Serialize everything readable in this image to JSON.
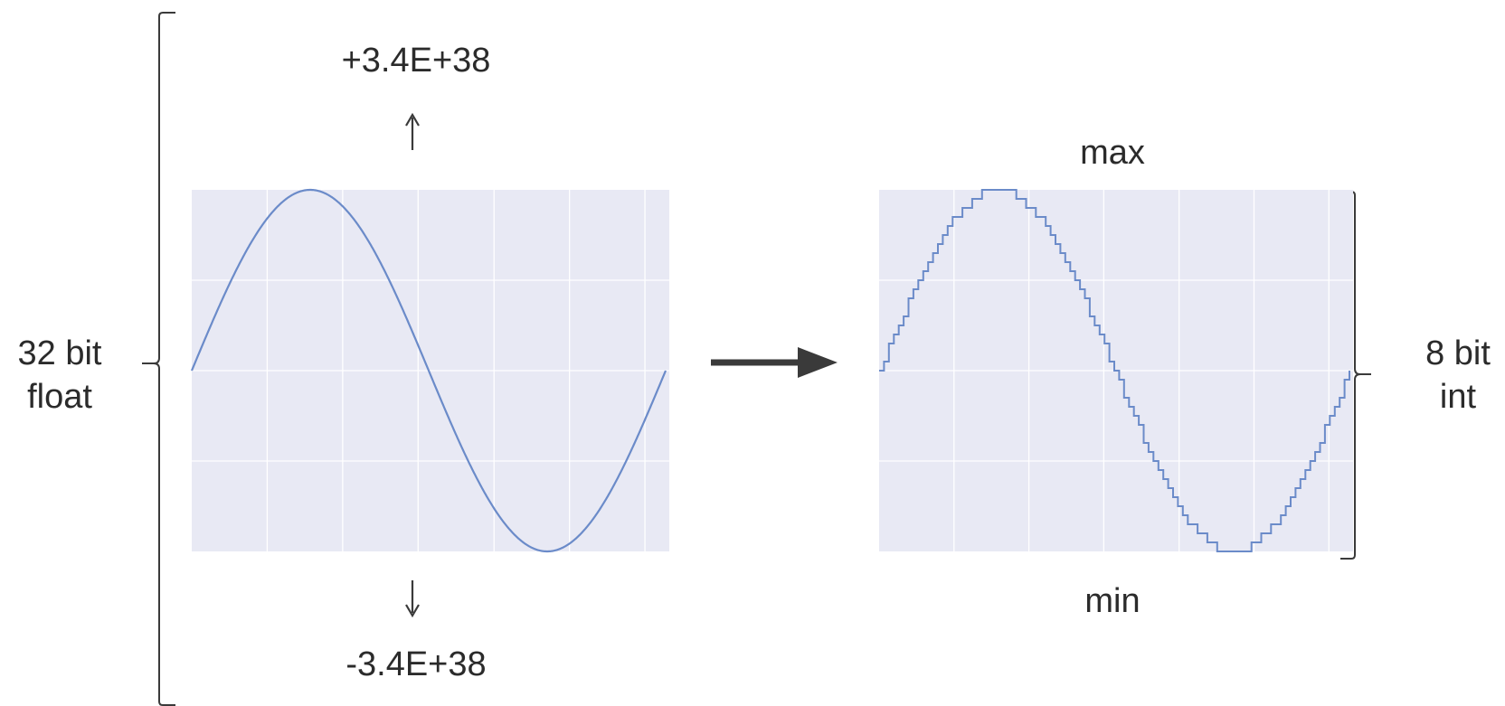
{
  "labels": {
    "source_type": "32 bit\nfloat",
    "target_type": "8 bit\nint",
    "float_max": "+3.4E+38",
    "float_min": "-3.4E+38",
    "int_max": "max",
    "int_min": "min"
  },
  "colors": {
    "plot_background": "#e8e9f4",
    "grid": "#ffffff",
    "signal": "#6b8bc9",
    "arrow": "#3a3a3a",
    "bracket": "#3a3a3a",
    "text": "#2b2b2b"
  },
  "icons": {
    "up": "arrow-up-icon",
    "down": "arrow-down-icon",
    "conversion": "arrow-right-icon"
  },
  "chart_data": [
    {
      "type": "line",
      "series": [
        {
          "function": "sine",
          "cycles": 1,
          "quantized": false
        }
      ],
      "grid": true
    },
    {
      "type": "line",
      "series": [
        {
          "function": "sine",
          "cycles": 1,
          "quantized": true,
          "levels": 41
        }
      ],
      "grid": true
    }
  ]
}
